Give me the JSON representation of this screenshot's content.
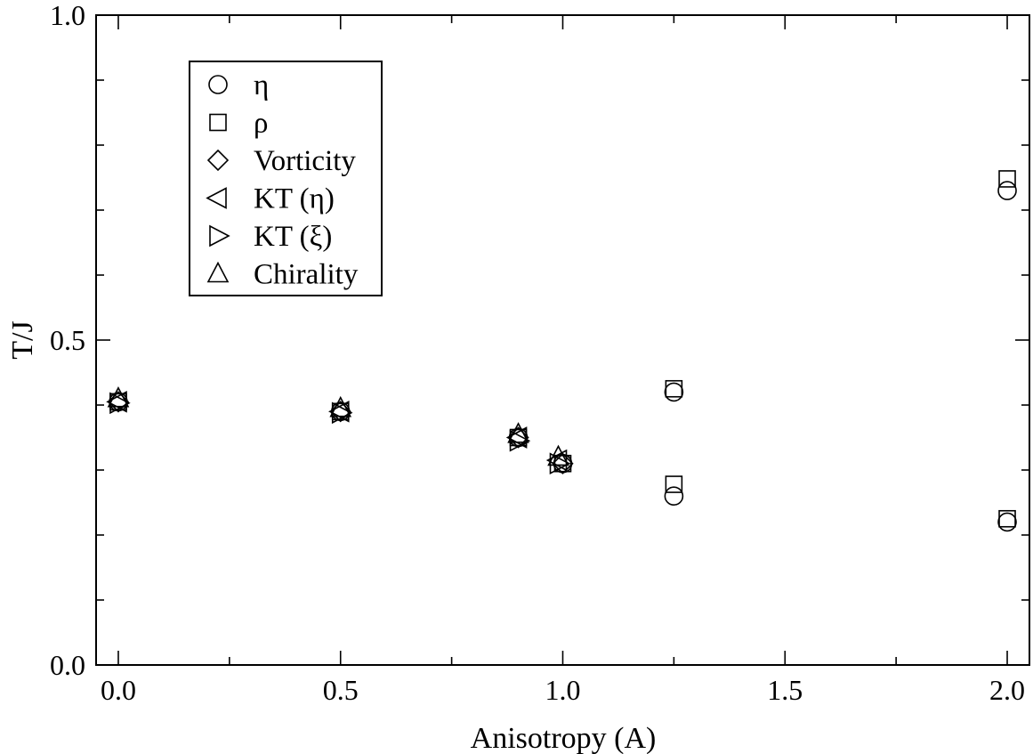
{
  "chart_data": {
    "type": "scatter",
    "title": "",
    "xlabel": "Anisotropy (A)",
    "ylabel": "T/J",
    "xlim": [
      -0.05,
      2.05
    ],
    "ylim": [
      0.0,
      1.0
    ],
    "x_ticks": [
      "0.0",
      "0.5",
      "1.0",
      "1.5",
      "2.0"
    ],
    "y_ticks": [
      "0.0",
      "0.5",
      "1.0"
    ],
    "grid": false,
    "legend_position": "top-left",
    "series": [
      {
        "name": "η",
        "marker": "circle",
        "points": [
          [
            0.0,
            0.405
          ],
          [
            0.5,
            0.39
          ],
          [
            0.9,
            0.35
          ],
          [
            1.0,
            0.31
          ],
          [
            1.25,
            0.42
          ],
          [
            1.25,
            0.26
          ],
          [
            2.0,
            0.73
          ],
          [
            2.0,
            0.22
          ]
        ]
      },
      {
        "name": "ρ",
        "marker": "square",
        "points": [
          [
            0.0,
            0.405
          ],
          [
            0.5,
            0.39
          ],
          [
            0.9,
            0.35
          ],
          [
            1.0,
            0.31
          ],
          [
            1.25,
            0.425
          ],
          [
            1.25,
            0.278
          ],
          [
            2.0,
            0.748
          ],
          [
            2.0,
            0.225
          ]
        ]
      },
      {
        "name": "Vorticity",
        "marker": "diamond",
        "points": [
          [
            0.0,
            0.405
          ],
          [
            0.5,
            0.39
          ],
          [
            0.9,
            0.35
          ],
          [
            1.0,
            0.31
          ]
        ]
      },
      {
        "name": "KT (η)",
        "marker": "triangle-left",
        "points": [
          [
            0.0,
            0.405
          ],
          [
            0.5,
            0.39
          ],
          [
            0.9,
            0.35
          ],
          [
            0.99,
            0.315
          ]
        ]
      },
      {
        "name": "KT (ξ)",
        "marker": "triangle-right",
        "points": [
          [
            0.0,
            0.403
          ],
          [
            0.5,
            0.388
          ],
          [
            0.9,
            0.345
          ],
          [
            0.99,
            0.31
          ]
        ]
      },
      {
        "name": "Chirality",
        "marker": "triangle-up",
        "points": [
          [
            0.0,
            0.41
          ],
          [
            0.5,
            0.395
          ],
          [
            0.9,
            0.355
          ],
          [
            0.99,
            0.32
          ]
        ]
      }
    ]
  }
}
